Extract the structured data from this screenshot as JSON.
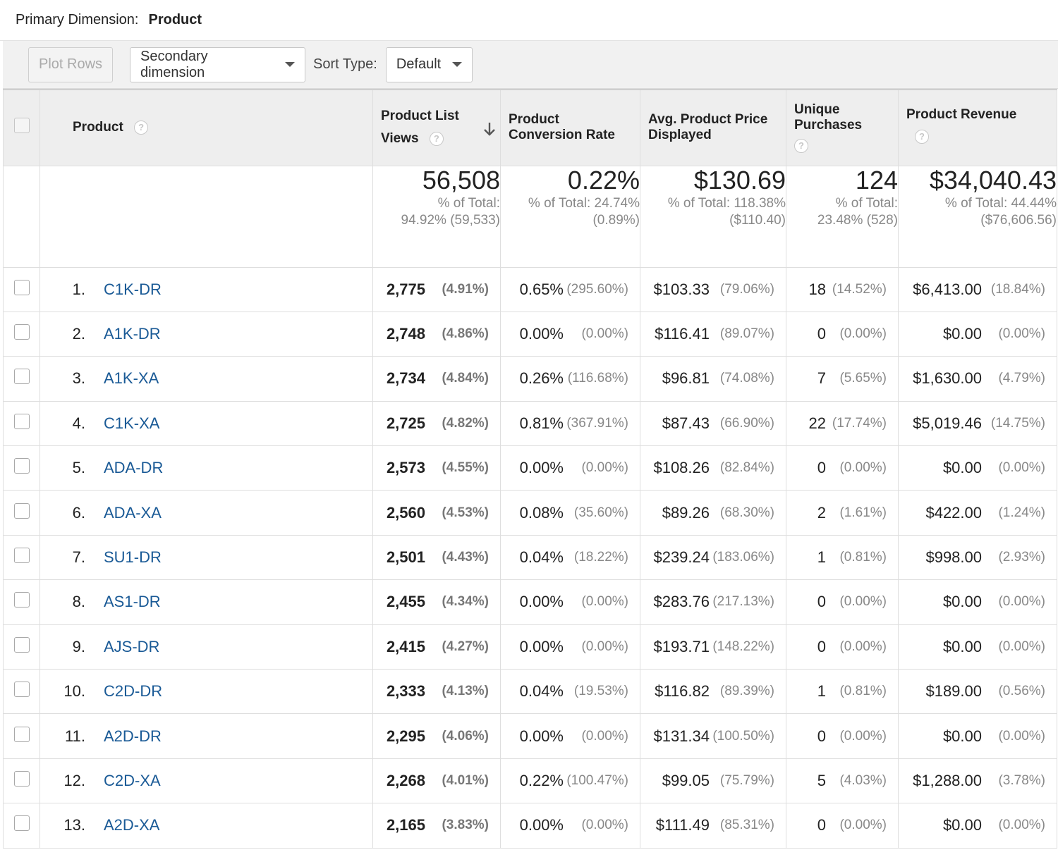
{
  "primary_dimension": {
    "label": "Primary Dimension:",
    "value": "Product"
  },
  "toolbar": {
    "plot_rows": "Plot Rows",
    "secondary_dimension": "Secondary dimension",
    "sort_type_label": "Sort Type:",
    "sort_type_value": "Default"
  },
  "columns": {
    "product": "Product",
    "views_line1": "Product List",
    "views_line2": "Views",
    "conversion_line1": "Product",
    "conversion_line2": "Conversion Rate",
    "avg_line1": "Avg. Product Price",
    "avg_line2": "Displayed",
    "unique_line1": "Unique",
    "unique_line2": "Purchases",
    "revenue": "Product Revenue",
    "help_glyph": "?"
  },
  "totals": {
    "views": {
      "value": "56,508",
      "line1": "% of Total:",
      "line2": "94.92% (59,533)"
    },
    "conversion": {
      "value": "0.22%",
      "line1": "% of Total: 24.74%",
      "line2": "(0.89%)"
    },
    "avg_price": {
      "value": "$130.69",
      "line1": "% of Total: 118.38%",
      "line2": "($110.40)"
    },
    "unique": {
      "value": "124",
      "line1": "% of Total:",
      "line2": "23.48% (528)"
    },
    "revenue": {
      "value": "$34,040.43",
      "line1": "% of Total: 44.44%",
      "line2": "($76,606.56)"
    }
  },
  "rows": [
    {
      "num": "1.",
      "product": "C1K-DR",
      "views": "2,775",
      "views_pct": "(4.91%)",
      "conv": "0.65%",
      "conv_pct": "(295.60%)",
      "avg": "$103.33",
      "avg_pct": "(79.06%)",
      "uniq": "18",
      "uniq_pct": "(14.52%)",
      "rev": "$6,413.00",
      "rev_pct": "(18.84%)"
    },
    {
      "num": "2.",
      "product": "A1K-DR",
      "views": "2,748",
      "views_pct": "(4.86%)",
      "conv": "0.00%",
      "conv_pct": "(0.00%)",
      "avg": "$116.41",
      "avg_pct": "(89.07%)",
      "uniq": "0",
      "uniq_pct": "(0.00%)",
      "rev": "$0.00",
      "rev_pct": "(0.00%)"
    },
    {
      "num": "3.",
      "product": "A1K-XA",
      "views": "2,734",
      "views_pct": "(4.84%)",
      "conv": "0.26%",
      "conv_pct": "(116.68%)",
      "avg": "$96.81",
      "avg_pct": "(74.08%)",
      "uniq": "7",
      "uniq_pct": "(5.65%)",
      "rev": "$1,630.00",
      "rev_pct": "(4.79%)"
    },
    {
      "num": "4.",
      "product": "C1K-XA",
      "views": "2,725",
      "views_pct": "(4.82%)",
      "conv": "0.81%",
      "conv_pct": "(367.91%)",
      "avg": "$87.43",
      "avg_pct": "(66.90%)",
      "uniq": "22",
      "uniq_pct": "(17.74%)",
      "rev": "$5,019.46",
      "rev_pct": "(14.75%)"
    },
    {
      "num": "5.",
      "product": "ADA-DR",
      "views": "2,573",
      "views_pct": "(4.55%)",
      "conv": "0.00%",
      "conv_pct": "(0.00%)",
      "avg": "$108.26",
      "avg_pct": "(82.84%)",
      "uniq": "0",
      "uniq_pct": "(0.00%)",
      "rev": "$0.00",
      "rev_pct": "(0.00%)"
    },
    {
      "num": "6.",
      "product": "ADA-XA",
      "views": "2,560",
      "views_pct": "(4.53%)",
      "conv": "0.08%",
      "conv_pct": "(35.60%)",
      "avg": "$89.26",
      "avg_pct": "(68.30%)",
      "uniq": "2",
      "uniq_pct": "(1.61%)",
      "rev": "$422.00",
      "rev_pct": "(1.24%)"
    },
    {
      "num": "7.",
      "product": "SU1-DR",
      "views": "2,501",
      "views_pct": "(4.43%)",
      "conv": "0.04%",
      "conv_pct": "(18.22%)",
      "avg": "$239.24",
      "avg_pct": "(183.06%)",
      "uniq": "1",
      "uniq_pct": "(0.81%)",
      "rev": "$998.00",
      "rev_pct": "(2.93%)"
    },
    {
      "num": "8.",
      "product": "AS1-DR",
      "views": "2,455",
      "views_pct": "(4.34%)",
      "conv": "0.00%",
      "conv_pct": "(0.00%)",
      "avg": "$283.76",
      "avg_pct": "(217.13%)",
      "uniq": "0",
      "uniq_pct": "(0.00%)",
      "rev": "$0.00",
      "rev_pct": "(0.00%)"
    },
    {
      "num": "9.",
      "product": "AJS-DR",
      "views": "2,415",
      "views_pct": "(4.27%)",
      "conv": "0.00%",
      "conv_pct": "(0.00%)",
      "avg": "$193.71",
      "avg_pct": "(148.22%)",
      "uniq": "0",
      "uniq_pct": "(0.00%)",
      "rev": "$0.00",
      "rev_pct": "(0.00%)"
    },
    {
      "num": "10.",
      "product": "C2D-DR",
      "views": "2,333",
      "views_pct": "(4.13%)",
      "conv": "0.04%",
      "conv_pct": "(19.53%)",
      "avg": "$116.82",
      "avg_pct": "(89.39%)",
      "uniq": "1",
      "uniq_pct": "(0.81%)",
      "rev": "$189.00",
      "rev_pct": "(0.56%)"
    },
    {
      "num": "11.",
      "product": "A2D-DR",
      "views": "2,295",
      "views_pct": "(4.06%)",
      "conv": "0.00%",
      "conv_pct": "(0.00%)",
      "avg": "$131.34",
      "avg_pct": "(100.50%)",
      "uniq": "0",
      "uniq_pct": "(0.00%)",
      "rev": "$0.00",
      "rev_pct": "(0.00%)"
    },
    {
      "num": "12.",
      "product": "C2D-XA",
      "views": "2,268",
      "views_pct": "(4.01%)",
      "conv": "0.22%",
      "conv_pct": "(100.47%)",
      "avg": "$99.05",
      "avg_pct": "(75.79%)",
      "uniq": "5",
      "uniq_pct": "(4.03%)",
      "rev": "$1,288.00",
      "rev_pct": "(3.78%)"
    },
    {
      "num": "13.",
      "product": "A2D-XA",
      "views": "2,165",
      "views_pct": "(3.83%)",
      "conv": "0.00%",
      "conv_pct": "(0.00%)",
      "avg": "$111.49",
      "avg_pct": "(85.31%)",
      "uniq": "0",
      "uniq_pct": "(0.00%)",
      "rev": "$0.00",
      "rev_pct": "(0.00%)"
    }
  ]
}
